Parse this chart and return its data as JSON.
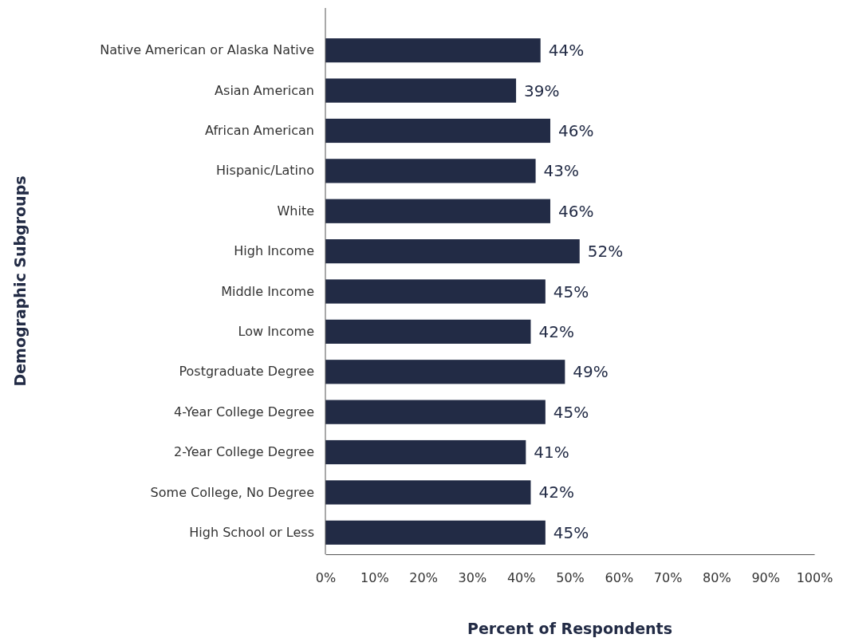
{
  "chart_data": {
    "type": "bar",
    "orientation": "horizontal",
    "xlabel": "Percent of Respondents",
    "ylabel": "Demographic Subgroups",
    "categories": [
      "Native American or Alaska Native",
      "Asian American",
      "African American",
      "Hispanic/Latino",
      "White",
      "High Income",
      "Middle Income",
      "Low Income",
      "Postgraduate Degree",
      "4-Year College Degree",
      "2-Year College Degree",
      "Some College, No Degree",
      "High School or Less"
    ],
    "values": [
      44,
      39,
      46,
      43,
      46,
      52,
      45,
      42,
      49,
      45,
      41,
      42,
      45
    ],
    "value_labels": [
      "44%",
      "39%",
      "46%",
      "43%",
      "46%",
      "52%",
      "45%",
      "42%",
      "49%",
      "45%",
      "41%",
      "42%",
      "45%"
    ],
    "color": "#222b45",
    "xlim": [
      0,
      100
    ],
    "xticks": [
      {
        "value": 0,
        "label": "0%"
      },
      {
        "value": 10,
        "label": "10%"
      },
      {
        "value": 20,
        "label": "20%"
      },
      {
        "value": 30,
        "label": "30%"
      },
      {
        "value": 40,
        "label": "40%"
      },
      {
        "value": 50,
        "label": "50%"
      },
      {
        "value": 60,
        "label": "60%"
      },
      {
        "value": 70,
        "label": "70%"
      },
      {
        "value": 80,
        "label": "80%"
      },
      {
        "value": 90,
        "label": "90%"
      },
      {
        "value": 100,
        "label": "100%"
      }
    ],
    "grid": false
  }
}
